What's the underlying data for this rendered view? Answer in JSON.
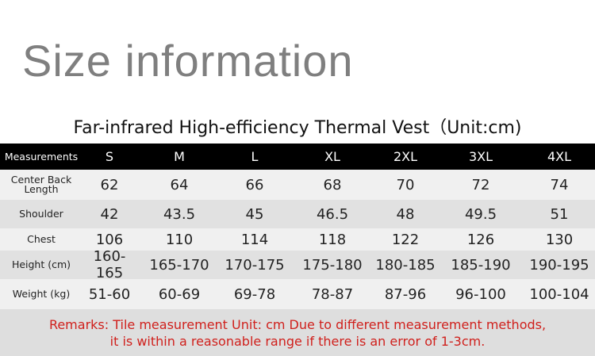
{
  "header": {
    "title": "Size information",
    "subtitle": "Far-infrared High-efficiency Thermal Vest（Unit:cm)"
  },
  "table": {
    "header": [
      "Measurements",
      "S",
      "M",
      "L",
      "XL",
      "2XL",
      "3XL",
      "4XL"
    ],
    "rows": [
      [
        "Center Back Length",
        "62",
        "64",
        "66",
        "68",
        "70",
        "72",
        "74"
      ],
      [
        "Shoulder",
        "42",
        "43.5",
        "45",
        "46.5",
        "48",
        "49.5",
        "51"
      ],
      [
        "Chest",
        "106",
        "110",
        "114",
        "118",
        "122",
        "126",
        "130"
      ],
      [
        "Height (cm)",
        "160-165",
        "165-170",
        "170-175",
        "175-180",
        "180-185",
        "185-190",
        "190-195"
      ],
      [
        "Weight (kg)",
        "51-60",
        "60-69",
        "69-78",
        "78-87",
        "87-96",
        "96-100",
        "100-104"
      ]
    ]
  },
  "remarks": [
    "Remarks: Tile measurement Unit: cm Due to different measurement methods,",
    "it is within a reasonable range if there is an error of 1-3cm."
  ]
}
